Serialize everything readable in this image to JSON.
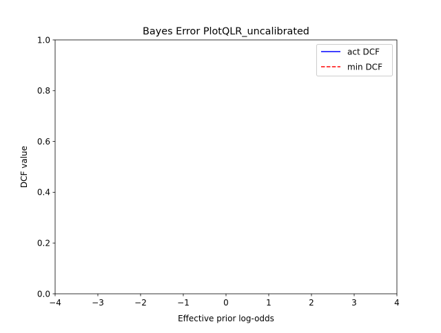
{
  "chart_data": {
    "type": "line",
    "title": "Bayes Error PlotQLR_uncalibrated",
    "xlabel": "Effective prior log-odds",
    "ylabel": "DCF value",
    "xlim": [
      -4,
      4
    ],
    "ylim": [
      0.0,
      1.0
    ],
    "xticks": [
      -4,
      -3,
      -2,
      -1,
      0,
      1,
      2,
      3,
      4
    ],
    "xtick_labels": [
      "−4",
      "−3",
      "−2",
      "−1",
      "0",
      "1",
      "2",
      "3",
      "4"
    ],
    "yticks": [
      0.0,
      0.2,
      0.4,
      0.6,
      0.8,
      1.0
    ],
    "ytick_labels": [
      "0.0",
      "0.2",
      "0.4",
      "0.6",
      "0.8",
      "1.0"
    ],
    "grid": false,
    "legend_position": "top-right",
    "series": [
      {
        "name": "act DCF",
        "color": "#0000ff",
        "linestyle": "solid",
        "x": [],
        "y": []
      },
      {
        "name": "min DCF",
        "color": "#ff0000",
        "linestyle": "dashed",
        "x": [],
        "y": []
      }
    ]
  }
}
